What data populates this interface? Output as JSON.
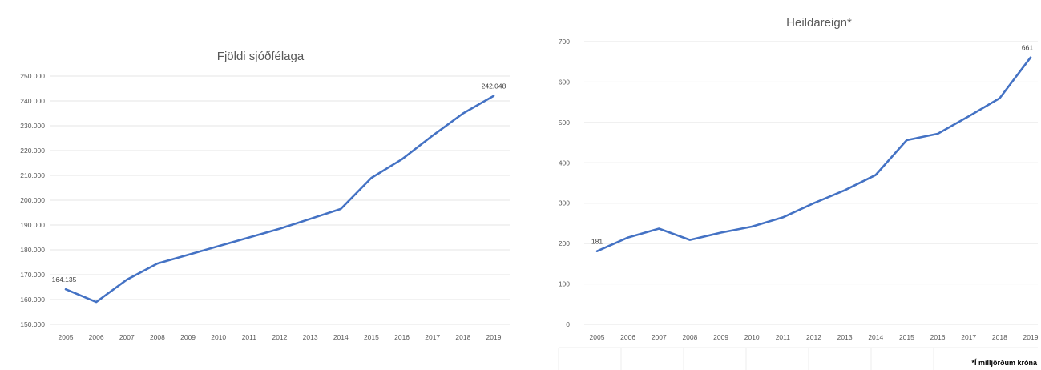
{
  "chart_data": [
    {
      "type": "line",
      "title": "Fjöldi sjóðfélaga",
      "xlabel": "",
      "ylabel": "",
      "categories": [
        "2005",
        "2006",
        "2007",
        "2008",
        "2009",
        "2010",
        "2011",
        "2012",
        "2013",
        "2014",
        "2015",
        "2016",
        "2017",
        "2018",
        "2019"
      ],
      "y_ticks": [
        "150.000",
        "160.000",
        "170.000",
        "180.000",
        "190.000",
        "200.000",
        "210.000",
        "220.000",
        "230.000",
        "240.000",
        "250.000"
      ],
      "ylim": [
        150000,
        250000
      ],
      "grid": true,
      "series": [
        {
          "color": "#4472c4",
          "values": [
            164135,
            159000,
            168000,
            174500,
            178000,
            181500,
            185000,
            188500,
            192500,
            196500,
            209000,
            216500,
            226000,
            235000,
            242048
          ]
        }
      ],
      "data_labels": [
        {
          "index": 0,
          "text": "164.135"
        },
        {
          "index": 14,
          "text": "242.048"
        }
      ]
    },
    {
      "type": "line",
      "title": "Heildareign*",
      "xlabel": "",
      "ylabel": "",
      "categories": [
        "2005",
        "2006",
        "2007",
        "2008",
        "2009",
        "2010",
        "2011",
        "2012",
        "2013",
        "2014",
        "2015",
        "2016",
        "2017",
        "2018",
        "2019"
      ],
      "y_ticks": [
        "0",
        "100",
        "200",
        "300",
        "400",
        "500",
        "600",
        "700"
      ],
      "ylim": [
        0,
        700
      ],
      "grid": true,
      "series": [
        {
          "color": "#4472c4",
          "values": [
            181,
            215,
            237,
            209,
            227,
            242,
            265,
            300,
            332,
            370,
            456,
            472,
            515,
            560,
            661
          ]
        }
      ],
      "data_labels": [
        {
          "index": 0,
          "text": "181"
        },
        {
          "index": 14,
          "text": "661"
        }
      ],
      "footnote": "*Í milljörðum króna"
    }
  ]
}
